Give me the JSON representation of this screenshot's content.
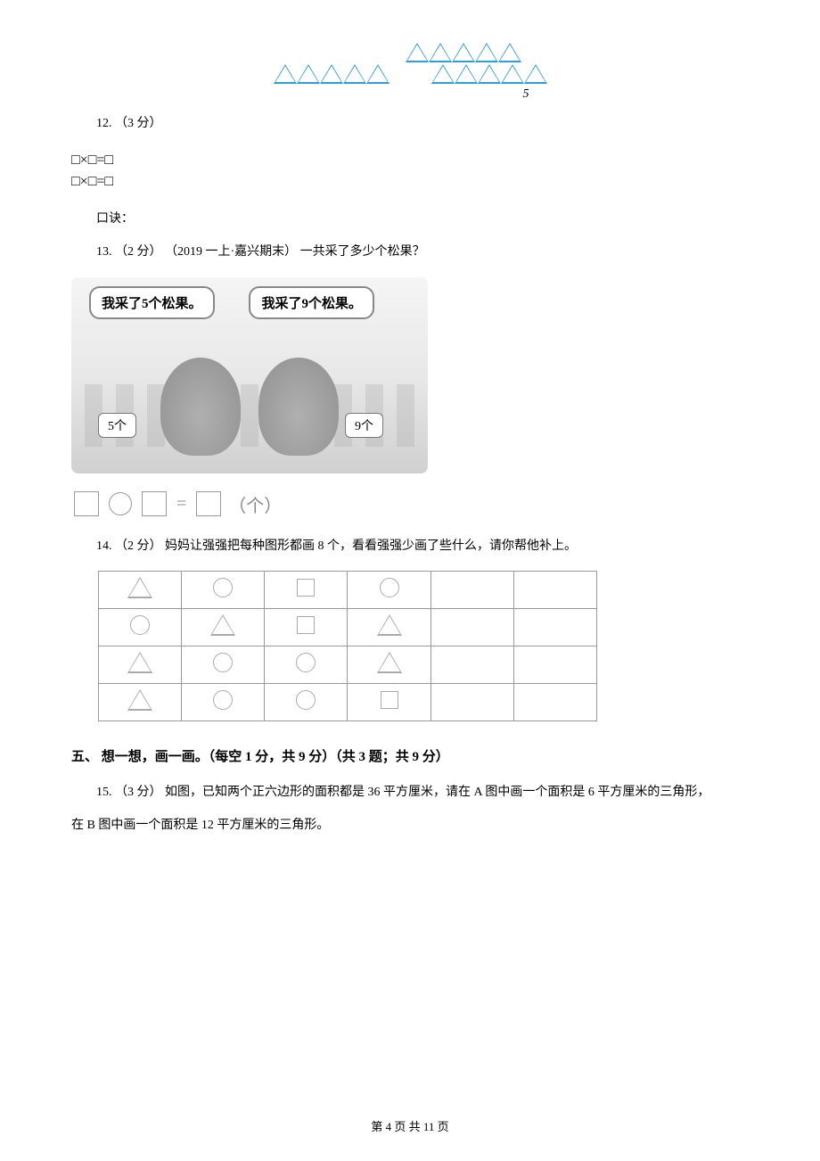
{
  "figure5_label": "5",
  "q12": {
    "number": "12.",
    "points": "（3 分）",
    "formula_lines": [
      "□×□=□",
      "□×□=□"
    ],
    "koujue_label": "口诀："
  },
  "q13": {
    "number": "13.",
    "points": "（2 分）",
    "source": "（2019 一上·嘉兴期末）",
    "text": "一共采了多少个松果？",
    "speech_left": "我采了5个松果。",
    "speech_right": "我采了9个松果。",
    "sign_left": "5个",
    "sign_right": "9个",
    "equation_unit": "（个）"
  },
  "q14": {
    "number": "14.",
    "points": "（2 分）",
    "text": "妈妈让强强把每种图形都画 8 个，看看强强少画了些什么，请你帮他补上。",
    "table_rows": [
      [
        "triangle",
        "circle",
        "square",
        "circle",
        "",
        ""
      ],
      [
        "circle",
        "triangle",
        "square",
        "triangle",
        "",
        ""
      ],
      [
        "triangle",
        "circle",
        "circle",
        "triangle",
        "",
        ""
      ],
      [
        "triangle",
        "circle",
        "circle",
        "square",
        "",
        ""
      ]
    ]
  },
  "section5": {
    "title": "五、 想一想，画一画。（每空 1 分，共 9 分）（共 3 题；共 9 分）"
  },
  "q15": {
    "number": "15.",
    "points": "（3 分）",
    "text_line1": "如图，已知两个正六边形的面积都是 36 平方厘米，请在 A 图中画一个面积是 6 平方厘米的三角形，",
    "text_line2": "在 B 图中画一个面积是 12 平方厘米的三角形。"
  },
  "page_footer": "第 4 页 共 11 页"
}
